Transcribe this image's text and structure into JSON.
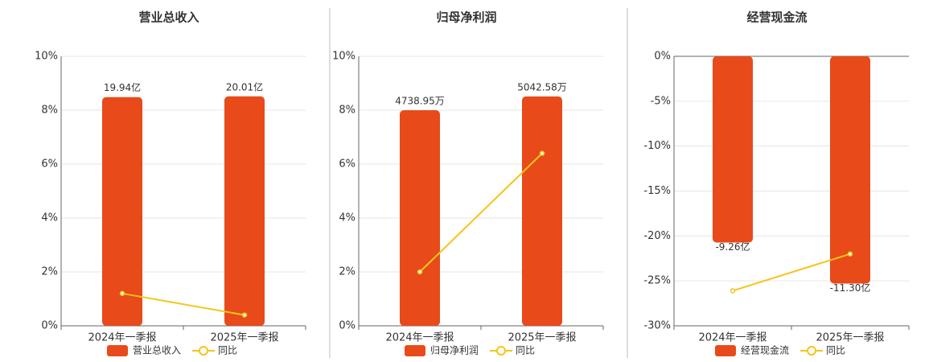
{
  "chart_data": [
    {
      "type": "bar",
      "title": "营业总收入",
      "categories": [
        "2024年一季报",
        "2025年一季报"
      ],
      "series": [
        {
          "name": "营业总收入",
          "color": "#e84a1a",
          "axis": "y2",
          "values": [
            19.94,
            20.01
          ],
          "value_labels": [
            "19.94亿",
            "20.01亿"
          ]
        },
        {
          "name": "同比",
          "type": "line",
          "color": "#f5c518",
          "values": [
            1.2,
            0.4
          ]
        }
      ],
      "ylim": [
        0,
        10
      ],
      "yticks": [
        {
          "value": 0,
          "label": "0%"
        },
        {
          "value": 2,
          "label": "2%"
        },
        {
          "value": 4,
          "label": "4%"
        },
        {
          "value": 6,
          "label": "6%"
        },
        {
          "value": 8,
          "label": "8%"
        },
        {
          "value": 10,
          "label": "10%"
        }
      ],
      "y2lim": [
        0,
        23.5
      ],
      "grid": true
    },
    {
      "type": "bar",
      "title": "归母净利润",
      "categories": [
        "2024年一季报",
        "2025年一季报"
      ],
      "series": [
        {
          "name": "归母净利润",
          "color": "#e84a1a",
          "axis": "y2",
          "values": [
            4738.95,
            5042.58
          ],
          "value_labels": [
            "4738.95万",
            "5042.58万"
          ]
        },
        {
          "name": "同比",
          "type": "line",
          "color": "#f5c518",
          "values": [
            2.0,
            6.4
          ]
        }
      ],
      "ylim": [
        0,
        10
      ],
      "yticks": [
        {
          "value": 0,
          "label": "0%"
        },
        {
          "value": 2,
          "label": "2%"
        },
        {
          "value": 4,
          "label": "4%"
        },
        {
          "value": 6,
          "label": "6%"
        },
        {
          "value": 8,
          "label": "8%"
        },
        {
          "value": 10,
          "label": "10%"
        }
      ],
      "y2lim": [
        0,
        5925
      ],
      "grid": true
    },
    {
      "type": "bar",
      "title": "经营现金流",
      "categories": [
        "2024年一季报",
        "2025年一季报"
      ],
      "series": [
        {
          "name": "经营现金流",
          "color": "#e84a1a",
          "axis": "y2",
          "values": [
            -9.26,
            -11.3
          ],
          "value_labels": [
            "-9.26亿",
            "-11.30亿"
          ]
        },
        {
          "name": "同比",
          "type": "line",
          "color": "#f5c518",
          "values": [
            -26.1,
            -22.0
          ]
        }
      ],
      "ylim": [
        -30,
        0
      ],
      "yticks": [
        {
          "value": -30,
          "label": "-30%"
        },
        {
          "value": -25,
          "label": "-25%"
        },
        {
          "value": -20,
          "label": "-20%"
        },
        {
          "value": -15,
          "label": "-15%"
        },
        {
          "value": -10,
          "label": "-10%"
        },
        {
          "value": -5,
          "label": "-5%"
        },
        {
          "value": 0,
          "label": "0%"
        }
      ],
      "y2lim": [
        -13.4,
        0
      ],
      "grid": true
    }
  ]
}
